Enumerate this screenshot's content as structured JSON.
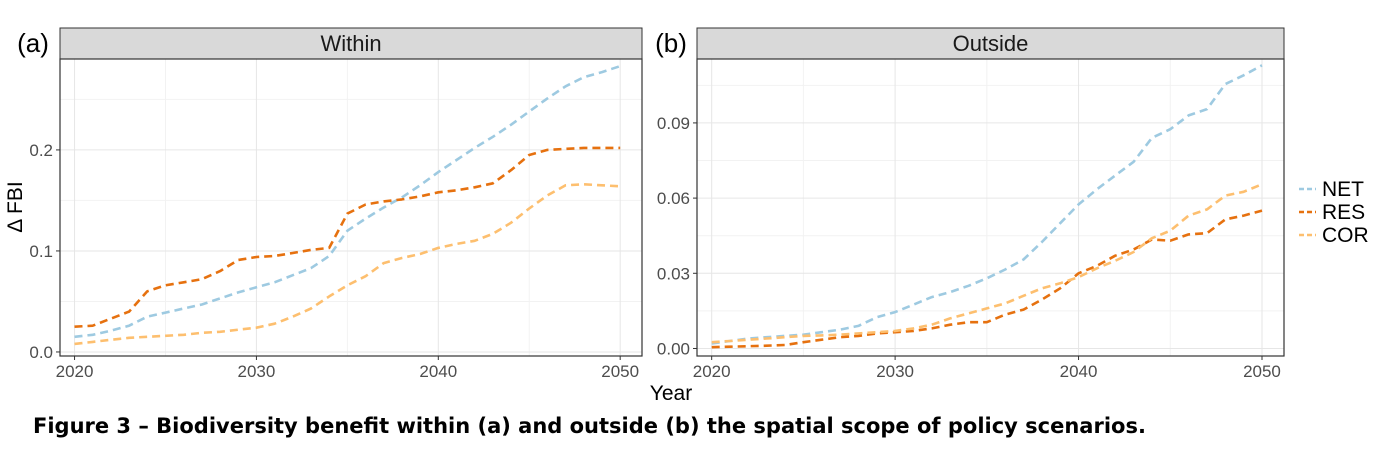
{
  "caption": "Figure 3 – Biodiversity benefit within (a) and outside (b) the spatial scope of policy scenarios.",
  "colors": {
    "NET": "#9ecae1",
    "RES": "#e6710f",
    "COR": "#fdbf6f"
  },
  "chart_data": [
    {
      "type": "line",
      "panel_tag": "(a)",
      "title": "Within",
      "xlabel": "Year",
      "ylabel": "Δ FBI",
      "xlim": [
        2019.2,
        2051.2
      ],
      "ylim": [
        -0.004,
        0.29
      ],
      "x_ticks": [
        2020,
        2030,
        2040,
        2050
      ],
      "x_tick_labels": [
        "2020",
        "2030",
        "2040",
        "2050"
      ],
      "y_ticks": [
        0.0,
        0.1,
        0.2
      ],
      "y_tick_labels": [
        "0.0",
        "0.1",
        "0.2"
      ],
      "grid": true,
      "x": [
        2020,
        2021,
        2022,
        2023,
        2024,
        2025,
        2026,
        2027,
        2028,
        2029,
        2030,
        2031,
        2032,
        2033,
        2034,
        2035,
        2036,
        2037,
        2038,
        2039,
        2040,
        2041,
        2042,
        2043,
        2044,
        2045,
        2046,
        2047,
        2048,
        2049,
        2050
      ],
      "series": [
        {
          "name": "NET",
          "values": [
            0.015,
            0.017,
            0.021,
            0.026,
            0.035,
            0.039,
            0.043,
            0.047,
            0.053,
            0.059,
            0.064,
            0.069,
            0.076,
            0.083,
            0.095,
            0.12,
            0.132,
            0.143,
            0.153,
            0.165,
            0.178,
            0.19,
            0.202,
            0.213,
            0.225,
            0.238,
            0.251,
            0.263,
            0.272,
            0.277,
            0.283
          ]
        },
        {
          "name": "RES",
          "values": [
            0.025,
            0.026,
            0.033,
            0.04,
            0.06,
            0.066,
            0.069,
            0.072,
            0.08,
            0.091,
            0.094,
            0.095,
            0.098,
            0.101,
            0.103,
            0.137,
            0.146,
            0.149,
            0.151,
            0.154,
            0.158,
            0.16,
            0.163,
            0.167,
            0.18,
            0.195,
            0.2,
            0.201,
            0.202,
            0.202,
            0.202
          ]
        },
        {
          "name": "COR",
          "values": [
            0.008,
            0.01,
            0.012,
            0.014,
            0.015,
            0.016,
            0.017,
            0.019,
            0.02,
            0.022,
            0.024,
            0.028,
            0.035,
            0.043,
            0.055,
            0.066,
            0.075,
            0.088,
            0.093,
            0.097,
            0.103,
            0.107,
            0.11,
            0.117,
            0.128,
            0.142,
            0.155,
            0.165,
            0.166,
            0.165,
            0.164
          ]
        }
      ]
    },
    {
      "type": "line",
      "panel_tag": "(b)",
      "title": "Outside",
      "xlabel": "Year",
      "ylabel": "",
      "xlim": [
        2019.2,
        2051.2
      ],
      "ylim": [
        -0.003,
        0.1155
      ],
      "x_ticks": [
        2020,
        2030,
        2040,
        2050
      ],
      "x_tick_labels": [
        "2020",
        "2030",
        "2040",
        "2050"
      ],
      "y_ticks": [
        0.0,
        0.03,
        0.06,
        0.09
      ],
      "y_tick_labels": [
        "0.00",
        "0.03",
        "0.06",
        "0.09"
      ],
      "grid": true,
      "x": [
        2020,
        2021,
        2022,
        2023,
        2024,
        2025,
        2026,
        2027,
        2028,
        2029,
        2030,
        2031,
        2032,
        2033,
        2034,
        2035,
        2036,
        2037,
        2038,
        2039,
        2040,
        2041,
        2042,
        2043,
        2044,
        2045,
        2046,
        2047,
        2048,
        2049,
        2050
      ],
      "series": [
        {
          "name": "NET",
          "values": [
            0.002,
            0.003,
            0.004,
            0.0045,
            0.005,
            0.0055,
            0.0065,
            0.0075,
            0.009,
            0.0125,
            0.0145,
            0.0175,
            0.0205,
            0.0225,
            0.025,
            0.028,
            0.0315,
            0.0355,
            0.0425,
            0.05,
            0.0575,
            0.0635,
            0.069,
            0.0745,
            0.084,
            0.0875,
            0.093,
            0.0955,
            0.1055,
            0.109,
            0.113
          ]
        },
        {
          "name": "RES",
          "values": [
            0.0005,
            0.0007,
            0.0009,
            0.0011,
            0.0014,
            0.0025,
            0.0035,
            0.0045,
            0.005,
            0.006,
            0.0065,
            0.007,
            0.008,
            0.0095,
            0.0105,
            0.0105,
            0.0135,
            0.0155,
            0.0195,
            0.024,
            0.03,
            0.033,
            0.037,
            0.0395,
            0.0435,
            0.043,
            0.0455,
            0.046,
            0.0515,
            0.053,
            0.055
          ]
        },
        {
          "name": "COR",
          "values": [
            0.0025,
            0.003,
            0.0035,
            0.004,
            0.0045,
            0.005,
            0.0052,
            0.0055,
            0.006,
            0.0065,
            0.007,
            0.008,
            0.0095,
            0.012,
            0.014,
            0.016,
            0.018,
            0.021,
            0.024,
            0.026,
            0.0285,
            0.032,
            0.035,
            0.0385,
            0.044,
            0.047,
            0.053,
            0.0555,
            0.061,
            0.0625,
            0.0655
          ]
        }
      ]
    }
  ],
  "legend": {
    "placement": "right",
    "items": [
      {
        "name": "NET",
        "color": "#9ecae1"
      },
      {
        "name": "RES",
        "color": "#e6710f"
      },
      {
        "name": "COR",
        "color": "#fdbf6f"
      }
    ]
  }
}
